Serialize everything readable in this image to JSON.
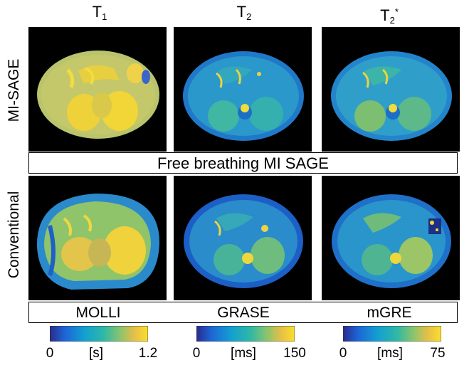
{
  "columns": [
    {
      "main": "T",
      "sub": "1",
      "sup": ""
    },
    {
      "main": "T",
      "sub": "2",
      "sup": ""
    },
    {
      "main": "T",
      "sub": "2",
      "sup": "*"
    }
  ],
  "rows": [
    {
      "label": "MI-SAGE"
    },
    {
      "label": "Conventional"
    }
  ],
  "banner_top": "Free breathing MI SAGE",
  "methods": [
    "MOLLI",
    "GRASE",
    "mGRE"
  ],
  "colorbars": [
    {
      "min": "0",
      "unit": "[s]",
      "max": "1.2"
    },
    {
      "min": "0",
      "unit": "[ms]",
      "max": "150"
    },
    {
      "min": "0",
      "unit": "[ms]",
      "max": "75"
    }
  ],
  "colormap": [
    "#2b2a8c",
    "#1e64d6",
    "#139fd1",
    "#2fb8a6",
    "#8cc46c",
    "#e5bf48",
    "#fadf2c"
  ]
}
